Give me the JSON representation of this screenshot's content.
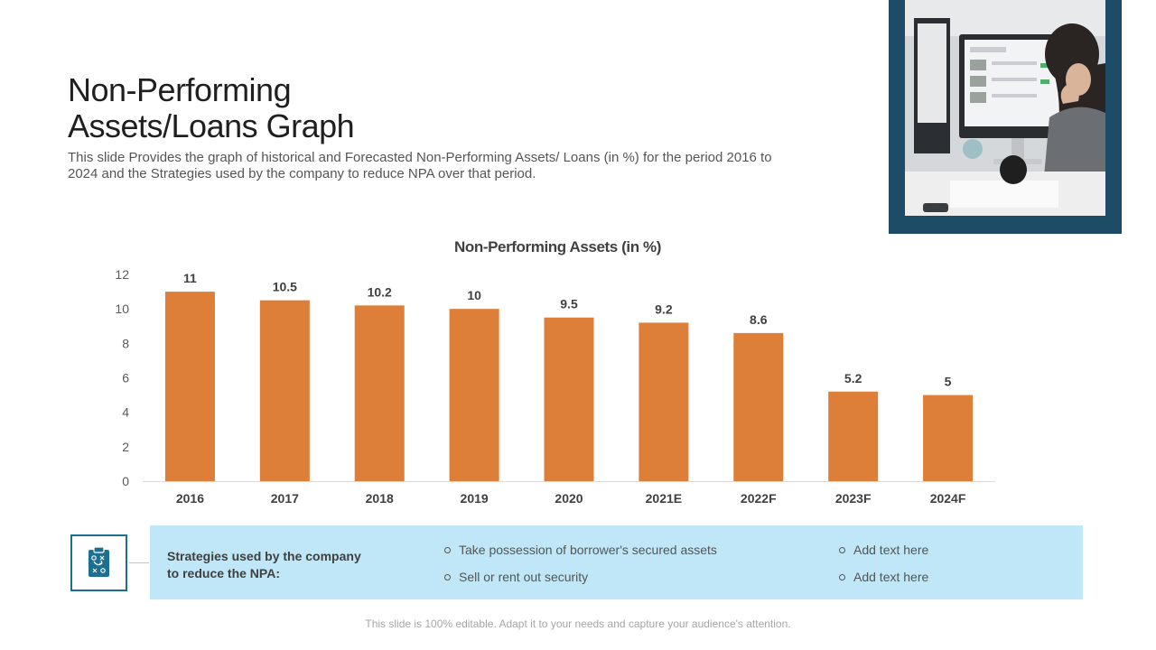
{
  "slide": {
    "title_line1": "Non-Performing",
    "title_line2": "Assets/Loans Graph",
    "subtitle": "This slide Provides the graph of historical and Forecasted Non-Performing Assets/ Loans (in %) for the period 2016 to 2024 and the Strategies used by the company to reduce NPA over that period.",
    "footer": "This slide is 100% editable. Adapt it to your needs and capture your audience's attention."
  },
  "strategies": {
    "label_line1": "Strategies used by the company",
    "label_line2": "to reduce the NPA:",
    "items": [
      "Take possession of borrower's secured assets",
      "Sell or rent out security",
      "Add text here",
      "Add text here"
    ],
    "icon": "clipboard-strategy-icon"
  },
  "colors": {
    "bar": "#dd7f38",
    "accent": "#1d4c66",
    "panel": "#bfe7f7"
  },
  "chart_data": {
    "type": "bar",
    "title": "Non-Performing Assets (in %)",
    "categories": [
      "2016",
      "2017",
      "2018",
      "2019",
      "2020",
      "2021E",
      "2022F",
      "2023F",
      "2024F"
    ],
    "values": [
      11,
      10.5,
      10.2,
      10,
      9.5,
      9.2,
      8.6,
      5.2,
      5
    ],
    "ylim": [
      0,
      12
    ],
    "yticks": [
      0,
      2,
      4,
      6,
      8,
      10,
      12
    ],
    "grid": false,
    "data_labels": true
  }
}
